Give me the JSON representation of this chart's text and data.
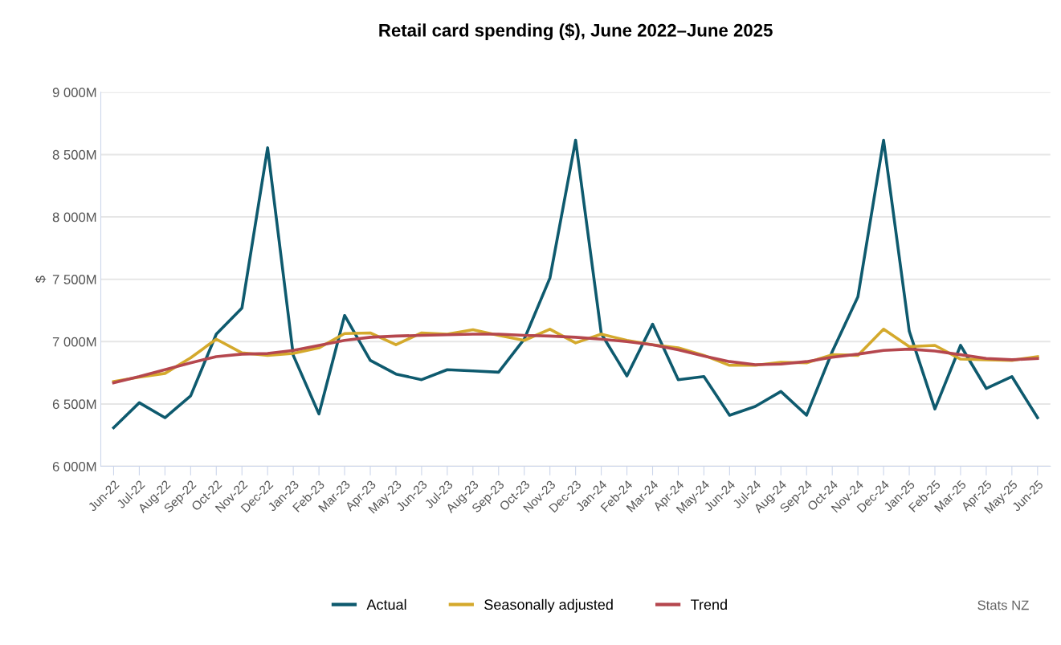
{
  "chart_data": {
    "type": "line",
    "title": "Retail card spending ($), June 2022–June 2025",
    "ylabel": "$",
    "categories": [
      "Jun-22",
      "Jul-22",
      "Aug-22",
      "Sep-22",
      "Oct-22",
      "Nov-22",
      "Dec-22",
      "Jan-23",
      "Feb-23",
      "Mar-23",
      "Apr-23",
      "May-23",
      "Jun-23",
      "Jul-23",
      "Aug-23",
      "Sep-23",
      "Oct-23",
      "Nov-23",
      "Dec-23",
      "Jan-24",
      "Feb-24",
      "Mar-24",
      "Apr-24",
      "May-24",
      "Jun-24",
      "Jul-24",
      "Aug-24",
      "Sep-24",
      "Oct-24",
      "Nov-24",
      "Dec-24",
      "Jan-25",
      "Feb-25",
      "Mar-25",
      "Apr-25",
      "May-25",
      "Jun-25"
    ],
    "series": [
      {
        "name": "Actual",
        "color": "#0e5a6e",
        "values": [
          6310,
          6510,
          6390,
          6565,
          7060,
          7270,
          8555,
          6890,
          6420,
          7210,
          6850,
          6740,
          6695,
          6775,
          6765,
          6755,
          7020,
          7510,
          8615,
          7065,
          6725,
          7140,
          6695,
          6720,
          6410,
          6480,
          6600,
          6410,
          6920,
          7360,
          8615,
          7085,
          6460,
          6970,
          6625,
          6720,
          6390
        ]
      },
      {
        "name": "Seasonally adjusted",
        "color": "#d4a92c",
        "values": [
          6680,
          6715,
          6745,
          6870,
          7020,
          6910,
          6890,
          6905,
          6950,
          7065,
          7070,
          6975,
          7070,
          7060,
          7095,
          7050,
          7010,
          7100,
          6990,
          7060,
          7010,
          6975,
          6950,
          6890,
          6810,
          6810,
          6835,
          6830,
          6895,
          6890,
          7100,
          6960,
          6970,
          6860,
          6855,
          6850,
          6880
        ]
      },
      {
        "name": "Trend",
        "color": "#b5474e",
        "values": [
          6670,
          6720,
          6775,
          6830,
          6880,
          6900,
          6905,
          6930,
          6970,
          7010,
          7035,
          7045,
          7050,
          7055,
          7060,
          7060,
          7050,
          7045,
          7035,
          7020,
          7000,
          6975,
          6935,
          6885,
          6840,
          6815,
          6820,
          6840,
          6875,
          6900,
          6930,
          6940,
          6925,
          6895,
          6865,
          6855,
          6865
        ]
      }
    ],
    "ylim": [
      6000,
      9000
    ],
    "yticks": [
      {
        "value": 6000,
        "label": "6 000M"
      },
      {
        "value": 6500,
        "label": "6 500M"
      },
      {
        "value": 7000,
        "label": "7 000M"
      },
      {
        "value": 7500,
        "label": "7 500M"
      },
      {
        "value": 8000,
        "label": "8 000M"
      },
      {
        "value": 8500,
        "label": "8 500M"
      },
      {
        "value": 9000,
        "label": "9 000M"
      }
    ],
    "grid": "y",
    "legend": "bottom",
    "marker": "none",
    "line_style": "solid",
    "annotations": [
      "Stats NZ"
    ]
  }
}
